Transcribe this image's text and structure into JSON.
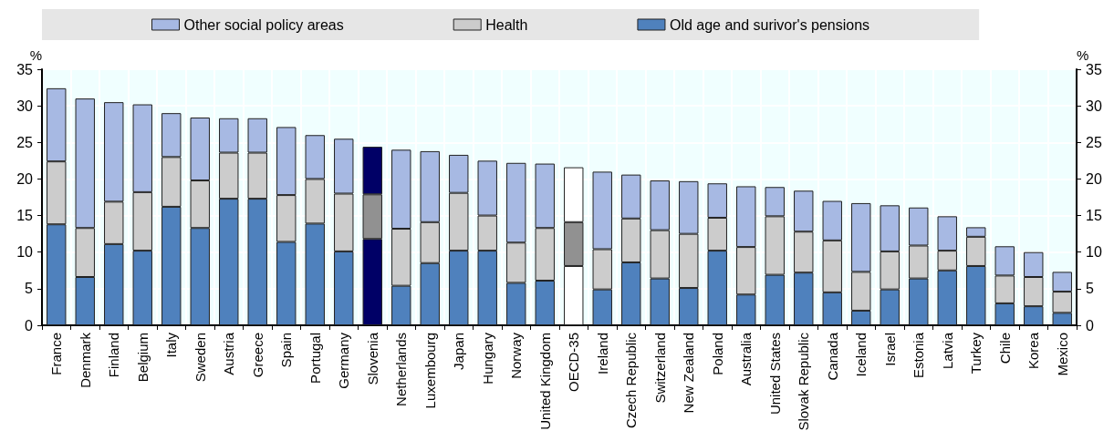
{
  "chart_data": {
    "type": "bar",
    "stacked": true,
    "ylabel": "%",
    "y2label": "%",
    "categories": [
      "France",
      "Denmark",
      "Finland",
      "Belgium",
      "Italy",
      "Sweden",
      "Austria",
      "Greece",
      "Spain",
      "Portugal",
      "Germany",
      "Slovenia",
      "Netherlands",
      "Luxembourg",
      "Japan",
      "Hungary",
      "Norway",
      "United Kingdom",
      "OECD-35",
      "Ireland",
      "Czech Republic",
      "Switzerland",
      "New Zealand",
      "Poland",
      "Australia",
      "United States",
      "Slovak Republic",
      "Canada",
      "Iceland",
      "Israel",
      "Estonia",
      "Latvia",
      "Turkey",
      "Chile",
      "Korea",
      "Mexico"
    ],
    "series": [
      {
        "name": "Old age and surivor's pensions",
        "color": "#4f81bd",
        "colors": [
          "#4f81bd",
          "#4f81bd",
          "#4f81bd",
          "#4f81bd",
          "#4f81bd",
          "#4f81bd",
          "#4f81bd",
          "#4f81bd",
          "#4f81bd",
          "#4f81bd",
          "#4f81bd",
          "#000066",
          "#4f81bd",
          "#4f81bd",
          "#4f81bd",
          "#4f81bd",
          "#4f81bd",
          "#4f81bd",
          "#ffffff",
          "#4f81bd",
          "#4f81bd",
          "#4f81bd",
          "#4f81bd",
          "#4f81bd",
          "#4f81bd",
          "#4f81bd",
          "#4f81bd",
          "#4f81bd",
          "#4f81bd",
          "#4f81bd",
          "#4f81bd",
          "#4f81bd",
          "#4f81bd",
          "#4f81bd",
          "#4f81bd",
          "#4f81bd"
        ],
        "values": [
          13.8,
          6.6,
          11.1,
          10.2,
          16.2,
          13.3,
          17.3,
          17.3,
          11.4,
          13.9,
          10.1,
          11.8,
          5.4,
          8.5,
          10.2,
          10.2,
          5.8,
          6.1,
          8.1,
          4.9,
          8.6,
          6.4,
          5.1,
          10.2,
          4.2,
          6.9,
          7.2,
          4.5,
          2.0,
          4.9,
          6.4,
          7.5,
          8.1,
          3.0,
          2.6,
          1.7
        ]
      },
      {
        "name": "Health",
        "color": "#cccccc",
        "colors": [
          "#cccccc",
          "#cccccc",
          "#cccccc",
          "#cccccc",
          "#cccccc",
          "#cccccc",
          "#cccccc",
          "#cccccc",
          "#cccccc",
          "#cccccc",
          "#cccccc",
          "#919191",
          "#cccccc",
          "#cccccc",
          "#cccccc",
          "#cccccc",
          "#cccccc",
          "#cccccc",
          "#919191",
          "#cccccc",
          "#cccccc",
          "#cccccc",
          "#cccccc",
          "#cccccc",
          "#cccccc",
          "#cccccc",
          "#cccccc",
          "#cccccc",
          "#cccccc",
          "#cccccc",
          "#cccccc",
          "#cccccc",
          "#cccccc",
          "#cccccc",
          "#cccccc",
          "#cccccc"
        ],
        "values": [
          8.6,
          6.7,
          5.8,
          8.0,
          6.8,
          6.5,
          6.3,
          6.3,
          6.4,
          6.1,
          7.9,
          6.1,
          7.8,
          5.6,
          7.9,
          4.8,
          5.5,
          7.2,
          6.0,
          5.5,
          6.0,
          6.6,
          7.4,
          4.5,
          6.5,
          8.0,
          5.6,
          7.1,
          5.3,
          5.2,
          4.5,
          2.7,
          4.0,
          3.8,
          4.0,
          2.9
        ]
      },
      {
        "name": "Other social policy areas",
        "color": "#a7b9e3",
        "colors": [
          "#a7b9e3",
          "#a7b9e3",
          "#a7b9e3",
          "#a7b9e3",
          "#a7b9e3",
          "#a7b9e3",
          "#a7b9e3",
          "#a7b9e3",
          "#a7b9e3",
          "#a7b9e3",
          "#a7b9e3",
          "#000066",
          "#a7b9e3",
          "#a7b9e3",
          "#a7b9e3",
          "#a7b9e3",
          "#a7b9e3",
          "#a7b9e3",
          "#ffffff",
          "#a7b9e3",
          "#a7b9e3",
          "#a7b9e3",
          "#a7b9e3",
          "#a7b9e3",
          "#a7b9e3",
          "#a7b9e3",
          "#a7b9e3",
          "#a7b9e3",
          "#a7b9e3",
          "#a7b9e3",
          "#a7b9e3",
          "#a7b9e3",
          "#a7b9e3",
          "#a7b9e3",
          "#a7b9e3",
          "#a7b9e3"
        ],
        "values": [
          10.0,
          17.7,
          13.6,
          12.0,
          6.0,
          8.6,
          4.7,
          4.7,
          9.3,
          6.0,
          7.5,
          6.5,
          10.8,
          9.7,
          5.2,
          7.5,
          10.9,
          8.8,
          7.5,
          10.6,
          6.0,
          6.8,
          7.2,
          4.7,
          8.3,
          4.0,
          5.6,
          5.4,
          9.4,
          6.3,
          5.2,
          4.7,
          1.3,
          4.0,
          3.4,
          2.7
        ]
      }
    ],
    "ylim": [
      0,
      35
    ],
    "yticks": [
      0,
      5,
      10,
      15,
      20,
      25,
      30,
      35
    ],
    "y2lim": [
      0,
      35
    ],
    "y2ticks": [
      0,
      5,
      10,
      15,
      20,
      25,
      30,
      35
    ],
    "grid": true,
    "legend": "top"
  }
}
